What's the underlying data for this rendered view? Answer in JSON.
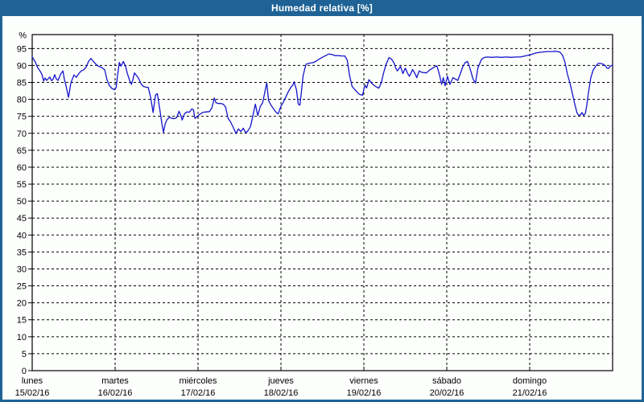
{
  "window": {
    "title": "Humedad relativa [%]"
  },
  "colors": {
    "titlebar_bg": "#1F6396",
    "window_border": "#1F6396",
    "background": "#FDFFFD",
    "series_line": "#1414CC",
    "grid": "#000000",
    "axis_text": "#000000",
    "title_text": "#FFFFFF"
  },
  "chart_data": {
    "type": "line",
    "title": "Humedad relativa [%]",
    "y_unit_label": "%",
    "ylim": [
      0,
      99
    ],
    "y_ticks": [
      0,
      5,
      10,
      15,
      20,
      25,
      30,
      35,
      40,
      45,
      50,
      55,
      60,
      65,
      70,
      75,
      80,
      85,
      90,
      95
    ],
    "grid": "dashed",
    "legend": "none",
    "x_hours_range": [
      0,
      168
    ],
    "x_day_tick_hours": [
      0,
      24,
      48,
      72,
      96,
      120,
      144
    ],
    "x_days": [
      {
        "name": "lunes",
        "date": "15/02/16"
      },
      {
        "name": "martes",
        "date": "16/02/16"
      },
      {
        "name": "miércoles",
        "date": "17/02/16"
      },
      {
        "name": "jueves",
        "date": "18/02/16"
      },
      {
        "name": "viernes",
        "date": "19/02/16"
      },
      {
        "name": "sábado",
        "date": "20/02/16"
      },
      {
        "name": "domingo",
        "date": "21/02/16"
      }
    ],
    "series": [
      {
        "name": "Humedad relativa",
        "color": "#1414CC",
        "points": [
          [
            0,
            92.5
          ],
          [
            0.9,
            91
          ],
          [
            1.6,
            89.3
          ],
          [
            2.3,
            88.3
          ],
          [
            2.8,
            87.4
          ],
          [
            3.3,
            85.4
          ],
          [
            3.7,
            86.3
          ],
          [
            4.2,
            85.6
          ],
          [
            4.7,
            86.2
          ],
          [
            5.1,
            86.6
          ],
          [
            5.6,
            85.5
          ],
          [
            6.1,
            86.1
          ],
          [
            6.5,
            87.3
          ],
          [
            7,
            86
          ],
          [
            7.5,
            85.6
          ],
          [
            8.2,
            87.4
          ],
          [
            8.9,
            88.4
          ],
          [
            9.3,
            86
          ],
          [
            9.8,
            83.9
          ],
          [
            10.5,
            80.6
          ],
          [
            11.2,
            84.9
          ],
          [
            12.1,
            87.2
          ],
          [
            12.8,
            86.5
          ],
          [
            13.5,
            87.6
          ],
          [
            14.2,
            88.4
          ],
          [
            14.9,
            88.7
          ],
          [
            15.6,
            89.5
          ],
          [
            16.3,
            91.2
          ],
          [
            17,
            92.1
          ],
          [
            17.7,
            91.2
          ],
          [
            18.4,
            90.4
          ],
          [
            19.1,
            89.8
          ],
          [
            20.1,
            89.4
          ],
          [
            21,
            88.7
          ],
          [
            21.7,
            85.6
          ],
          [
            22.4,
            84
          ],
          [
            23.1,
            83.2
          ],
          [
            23.8,
            82.9
          ],
          [
            24.3,
            83.5
          ],
          [
            24.7,
            87
          ],
          [
            25.2,
            90.9
          ],
          [
            25.7,
            89.8
          ],
          [
            26.4,
            91.2
          ],
          [
            27.1,
            89.5
          ],
          [
            27.5,
            87.8
          ],
          [
            28.2,
            85.6
          ],
          [
            28.7,
            84.4
          ],
          [
            29.2,
            86
          ],
          [
            29.6,
            87.8
          ],
          [
            30.3,
            86.9
          ],
          [
            30.8,
            86.2
          ],
          [
            31.5,
            84.6
          ],
          [
            32.2,
            83.8
          ],
          [
            32.9,
            83.6
          ],
          [
            33.6,
            83.5
          ],
          [
            34.3,
            80.5
          ],
          [
            35,
            76.1
          ],
          [
            35.7,
            81.3
          ],
          [
            36.2,
            81.7
          ],
          [
            36.9,
            77.2
          ],
          [
            37.6,
            72.4
          ],
          [
            38,
            70.3
          ],
          [
            38.5,
            72.8
          ],
          [
            39,
            74
          ],
          [
            39.7,
            74.7
          ],
          [
            40.4,
            74.4
          ],
          [
            41.1,
            74.3
          ],
          [
            41.8,
            74.6
          ],
          [
            42.5,
            76.5
          ],
          [
            42.9,
            75.6
          ],
          [
            43.4,
            73.9
          ],
          [
            44.1,
            75.8
          ],
          [
            44.8,
            76.3
          ],
          [
            45.5,
            76.2
          ],
          [
            46.2,
            77.2
          ],
          [
            46.7,
            76.9
          ],
          [
            47.1,
            74.4
          ],
          [
            47.8,
            74.9
          ],
          [
            48.5,
            75.6
          ],
          [
            49.5,
            76.2
          ],
          [
            50.4,
            76.3
          ],
          [
            51.3,
            76.4
          ],
          [
            52,
            77.5
          ],
          [
            52.7,
            80.4
          ],
          [
            53.2,
            79
          ],
          [
            53.9,
            78.8
          ],
          [
            54.6,
            78.8
          ],
          [
            55.3,
            78.6
          ],
          [
            56,
            77.7
          ],
          [
            56.7,
            74.4
          ],
          [
            57.4,
            73.4
          ],
          [
            58.3,
            71.5
          ],
          [
            59,
            69.9
          ],
          [
            59.7,
            71.3
          ],
          [
            60.4,
            70.5
          ],
          [
            61.1,
            71.5
          ],
          [
            61.8,
            70.1
          ],
          [
            62.5,
            70.8
          ],
          [
            63.2,
            72
          ],
          [
            63.9,
            75.2
          ],
          [
            64.6,
            78.6
          ],
          [
            65.3,
            75.2
          ],
          [
            66,
            77.9
          ],
          [
            66.7,
            79
          ],
          [
            67.4,
            82.5
          ],
          [
            67.9,
            84.9
          ],
          [
            68.4,
            79.7
          ],
          [
            69.1,
            78.3
          ],
          [
            69.8,
            77.3
          ],
          [
            70.5,
            76.3
          ],
          [
            71.2,
            75.7
          ],
          [
            71.9,
            77.8
          ],
          [
            72.6,
            79
          ],
          [
            73.5,
            80.9
          ],
          [
            74.2,
            82.4
          ],
          [
            74.9,
            83.6
          ],
          [
            75.4,
            84.1
          ],
          [
            75.8,
            85.2
          ],
          [
            76.5,
            82.8
          ],
          [
            77,
            78.6
          ],
          [
            77.5,
            78.3
          ],
          [
            77.9,
            82
          ],
          [
            78.4,
            86.9
          ],
          [
            78.9,
            89
          ],
          [
            79.3,
            90.4
          ],
          [
            80.3,
            90.7
          ],
          [
            81.2,
            90.8
          ],
          [
            82.1,
            91.2
          ],
          [
            83.1,
            91.9
          ],
          [
            84,
            92.4
          ],
          [
            84.9,
            92.9
          ],
          [
            85.9,
            93.4
          ],
          [
            86.8,
            93.2
          ],
          [
            87.7,
            92.9
          ],
          [
            88.7,
            92.9
          ],
          [
            89.6,
            92.8
          ],
          [
            90.5,
            92.8
          ],
          [
            91.2,
            91.5
          ],
          [
            91.9,
            86.8
          ],
          [
            92.6,
            83.8
          ],
          [
            93.3,
            83
          ],
          [
            94,
            82.2
          ],
          [
            94.7,
            81.5
          ],
          [
            95.6,
            81.2
          ],
          [
            96.3,
            84.2
          ],
          [
            96.8,
            83.4
          ],
          [
            97.5,
            85.8
          ],
          [
            98.2,
            84.8
          ],
          [
            98.9,
            84.2
          ],
          [
            99.6,
            83.7
          ],
          [
            100.3,
            83.3
          ],
          [
            101,
            84.8
          ],
          [
            101.7,
            87.8
          ],
          [
            102.4,
            90.3
          ],
          [
            103.3,
            92.3
          ],
          [
            104,
            91.9
          ],
          [
            104.7,
            90.8
          ],
          [
            105.2,
            89.3
          ],
          [
            105.7,
            88.4
          ],
          [
            106.6,
            89.7
          ],
          [
            107.3,
            87.6
          ],
          [
            108,
            89.2
          ],
          [
            108.7,
            87.6
          ],
          [
            109.2,
            86.8
          ],
          [
            110.1,
            88.8
          ],
          [
            110.8,
            87.6
          ],
          [
            111.3,
            86.4
          ],
          [
            112,
            88.4
          ],
          [
            112.7,
            88
          ],
          [
            113.4,
            87.9
          ],
          [
            114.1,
            87.8
          ],
          [
            115,
            88.6
          ],
          [
            116.2,
            89.4
          ],
          [
            117.1,
            89.9
          ],
          [
            117.8,
            87.6
          ],
          [
            118.5,
            84.4
          ],
          [
            119,
            86.4
          ],
          [
            119.5,
            84
          ],
          [
            120.2,
            86.8
          ],
          [
            120.9,
            84.4
          ],
          [
            121.8,
            86.4
          ],
          [
            122.5,
            86
          ],
          [
            123.2,
            85.6
          ],
          [
            123.9,
            87.5
          ],
          [
            124.6,
            89.5
          ],
          [
            125.3,
            90.8
          ],
          [
            126,
            91.2
          ],
          [
            126.7,
            89.2
          ],
          [
            127.6,
            86
          ],
          [
            128.3,
            84.8
          ],
          [
            129,
            89.2
          ],
          [
            130,
            91.7
          ],
          [
            130.7,
            92.3
          ],
          [
            131.6,
            92.5
          ],
          [
            133,
            92.4
          ],
          [
            134.4,
            92.5
          ],
          [
            135.8,
            92.4
          ],
          [
            137.2,
            92.5
          ],
          [
            138.6,
            92.4
          ],
          [
            140,
            92.5
          ],
          [
            141.4,
            92.5
          ],
          [
            142.6,
            92.8
          ],
          [
            143.5,
            93
          ],
          [
            144.7,
            93.3
          ],
          [
            145.8,
            93.7
          ],
          [
            147,
            93.9
          ],
          [
            148.2,
            94
          ],
          [
            149.3,
            94.1
          ],
          [
            150.5,
            94.1
          ],
          [
            151.7,
            94.2
          ],
          [
            152.8,
            93.9
          ],
          [
            153.5,
            93
          ],
          [
            154.2,
            91
          ],
          [
            154.9,
            87.5
          ],
          [
            155.6,
            85
          ],
          [
            156.3,
            82
          ],
          [
            157,
            78.8
          ],
          [
            157.7,
            76
          ],
          [
            158.2,
            75.3
          ],
          [
            158.7,
            75.4
          ],
          [
            159.1,
            76.1
          ],
          [
            159.6,
            75.3
          ],
          [
            160.1,
            75.8
          ],
          [
            160.5,
            78
          ],
          [
            161,
            82
          ],
          [
            161.7,
            86.5
          ],
          [
            162.4,
            88.7
          ],
          [
            163.1,
            89.8
          ],
          [
            163.8,
            90.6
          ],
          [
            164.5,
            90.6
          ],
          [
            165.2,
            90.4
          ],
          [
            165.9,
            89.9
          ],
          [
            166.4,
            89.2
          ],
          [
            166.8,
            89.1
          ],
          [
            167.3,
            89.8
          ],
          [
            168,
            90.1
          ]
        ]
      }
    ]
  }
}
